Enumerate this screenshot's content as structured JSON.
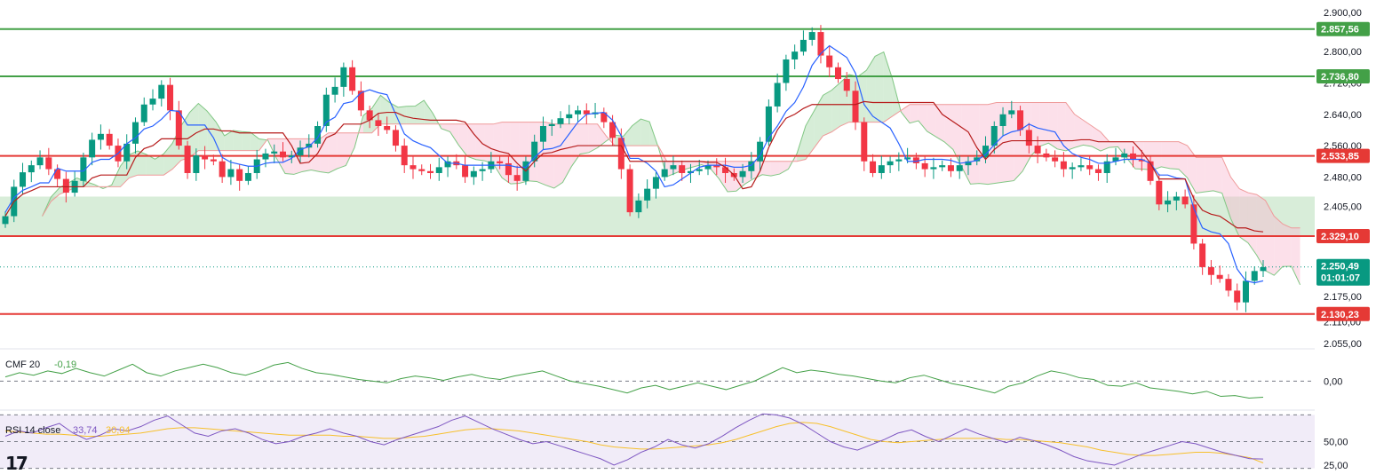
{
  "chart_data": [
    {
      "type": "candlestick",
      "title": "Price",
      "ylim": [
        2020,
        2910
      ],
      "price_ticks": [
        "2.900,00",
        "2.800,00",
        "2.720,00",
        "2.640,00",
        "2.560,00",
        "2.480,00",
        "2.405,00",
        "2.175,00",
        "2.110,00",
        "2.055,00"
      ],
      "price_tick_values": [
        2900,
        2800,
        2720,
        2640,
        2560,
        2480,
        2405,
        2175,
        2110,
        2055
      ],
      "levels": [
        {
          "value": 2857.56,
          "label": "2.857,56",
          "color": "#43a047",
          "kind": "resistance"
        },
        {
          "value": 2736.8,
          "label": "2.736,80",
          "color": "#43a047",
          "kind": "resistance"
        },
        {
          "value": 2533.85,
          "label": "2.533,85",
          "color": "#e53935",
          "kind": "support"
        },
        {
          "value": 2329.1,
          "label": "2.329,10",
          "color": "#e53935",
          "kind": "support"
        },
        {
          "value": 2130.23,
          "label": "2.130,23",
          "color": "#e53935",
          "kind": "support"
        }
      ],
      "zone": {
        "from": 2329.1,
        "to": 2430,
        "color": "#c8e6c9"
      },
      "current_price": {
        "value": 2250.49,
        "label": "2.250,49",
        "countdown": "01:01:07",
        "color": "#089981"
      },
      "close_series": [
        2380,
        2455,
        2492,
        2510,
        2530,
        2500,
        2475,
        2440,
        2470,
        2530,
        2575,
        2590,
        2560,
        2520,
        2565,
        2620,
        2665,
        2680,
        2715,
        2650,
        2560,
        2490,
        2535,
        2525,
        2520,
        2480,
        2500,
        2470,
        2490,
        2525,
        2540,
        2545,
        2530,
        2535,
        2555,
        2565,
        2610,
        2690,
        2710,
        2760,
        2700,
        2650,
        2625,
        2610,
        2600,
        2560,
        2510,
        2500,
        2495,
        2490,
        2505,
        2520,
        2510,
        2480,
        2495,
        2500,
        2520,
        2515,
        2485,
        2470,
        2520,
        2570,
        2610,
        2615,
        2630,
        2640,
        2650,
        2640,
        2645,
        2620,
        2580,
        2500,
        2390,
        2420,
        2450,
        2480,
        2500,
        2510,
        2490,
        2495,
        2500,
        2510,
        2505,
        2490,
        2480,
        2495,
        2520,
        2570,
        2660,
        2720,
        2780,
        2800,
        2830,
        2850,
        2790,
        2760,
        2730,
        2700,
        2620,
        2520,
        2490,
        2510,
        2520,
        2525,
        2530,
        2515,
        2500,
        2505,
        2510,
        2495,
        2510,
        2520,
        2530,
        2560,
        2610,
        2640,
        2650,
        2600,
        2560,
        2540,
        2530,
        2520,
        2500,
        2505,
        2510,
        2500,
        2490,
        2520,
        2530,
        2540,
        2525,
        2520,
        2470,
        2410,
        2420,
        2430,
        2410,
        2310,
        2250,
        2230,
        2220,
        2190,
        2160,
        2215,
        2240,
        2250
      ],
      "indicators": [
        "Ichimoku cloud",
        "Tenkan",
        "Kijun"
      ]
    },
    {
      "type": "line",
      "title": "CMF 20",
      "value_label": "-0,19",
      "ticks": [
        "0,00"
      ],
      "ylim": [
        -0.3,
        0.35
      ],
      "values": [
        0.05,
        0.1,
        0.07,
        0.12,
        0.09,
        0.15,
        0.1,
        0.06,
        0.13,
        0.2,
        0.1,
        0.06,
        0.12,
        0.16,
        0.2,
        0.16,
        0.1,
        0.07,
        0.12,
        0.19,
        0.22,
        0.15,
        0.1,
        0.08,
        0.05,
        0.02,
        0.0,
        -0.02,
        0.03,
        0.06,
        0.04,
        0.01,
        0.05,
        0.08,
        0.04,
        0.02,
        0.06,
        0.09,
        0.12,
        0.06,
        0.0,
        -0.03,
        -0.06,
        -0.1,
        -0.14,
        -0.08,
        -0.05,
        -0.1,
        -0.06,
        -0.02,
        -0.06,
        -0.1,
        -0.05,
        0.0,
        0.08,
        0.16,
        0.1,
        0.13,
        0.11,
        0.08,
        0.06,
        0.03,
        0.0,
        -0.02,
        0.04,
        0.07,
        0.02,
        -0.03,
        -0.06,
        -0.1,
        -0.14,
        -0.06,
        -0.02,
        0.06,
        0.12,
        0.09,
        0.04,
        0.02,
        -0.05,
        -0.06,
        -0.02,
        -0.08,
        -0.1,
        -0.12,
        -0.15,
        -0.12,
        -0.18,
        -0.17,
        -0.2,
        -0.19
      ],
      "color": "#43a047"
    },
    {
      "type": "line",
      "title": "RSI 14 close",
      "value_label": "33,74",
      "ma_label": "30,04",
      "ticks": [
        "50,00",
        "25,00"
      ],
      "ylim": [
        23,
        77
      ],
      "upper_band": 75,
      "lower_band": 25,
      "values": [
        55,
        60,
        58,
        63,
        67,
        58,
        52,
        56,
        62,
        60,
        64,
        70,
        74,
        66,
        58,
        55,
        60,
        62,
        58,
        52,
        48,
        50,
        55,
        58,
        62,
        58,
        55,
        50,
        47,
        52,
        56,
        60,
        64,
        70,
        74,
        68,
        62,
        57,
        52,
        48,
        50,
        46,
        42,
        38,
        34,
        28,
        33,
        40,
        45,
        52,
        47,
        44,
        48,
        55,
        63,
        70,
        76,
        75,
        72,
        66,
        58,
        50,
        45,
        42,
        47,
        52,
        58,
        61,
        55,
        50,
        56,
        62,
        57,
        53,
        49,
        54,
        51,
        47,
        42,
        36,
        32,
        30,
        28,
        33,
        38,
        42,
        46,
        50,
        48,
        44,
        40,
        37,
        34,
        33.74
      ],
      "ma_values": [
        60,
        59,
        58,
        57,
        57,
        56,
        55,
        55,
        56,
        57,
        58,
        60,
        62,
        63,
        63,
        62,
        61,
        60,
        59,
        58,
        57,
        56,
        56,
        56,
        56,
        55,
        55,
        54,
        53,
        53,
        54,
        55,
        57,
        59,
        61,
        62,
        62,
        61,
        60,
        58,
        56,
        54,
        52,
        50,
        47,
        45,
        44,
        43,
        43,
        44,
        45,
        46,
        47,
        49,
        52,
        56,
        60,
        64,
        67,
        68,
        67,
        64,
        60,
        56,
        52,
        50,
        49,
        50,
        51,
        52,
        53,
        53,
        53,
        53,
        52,
        52,
        51,
        50,
        49,
        47,
        45,
        42,
        40,
        38,
        37,
        37,
        38,
        39,
        40,
        40,
        39,
        37,
        35,
        30.04
      ],
      "color": "#7e57c2",
      "ma_color": "#f7c02c"
    }
  ]
}
